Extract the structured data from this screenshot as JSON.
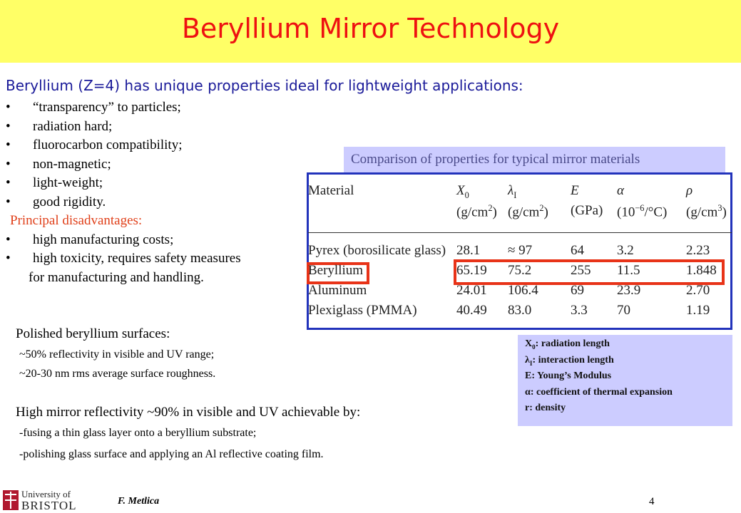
{
  "title": "Beryllium Mirror Technology",
  "intro": {
    "heading": "Beryllium (Z=4) has unique properties ideal for lightweight applications:",
    "bullets": [
      "“transparency” to particles;",
      "radiation hard;",
      "fluorocarbon compatibility;",
      "non-magnetic;",
      "light-weight;",
      "good rigidity."
    ],
    "disadvantages_heading": "Principal disadvantages:",
    "disadvantages": [
      "high manufacturing costs;",
      "high toxicity, requires safety  measures"
    ],
    "disadvantages_continuation": "for manufacturing and handling."
  },
  "polished": {
    "heading": "Polished beryllium surfaces:",
    "lines": [
      "~50% reflectivity in visible and UV range;",
      "~20-30 nm rms average surface roughness."
    ]
  },
  "reflectivity": {
    "heading": "High mirror reflectivity ~90% in visible and UV achievable by:",
    "lines": [
      "-fusing a thin glass layer onto a beryllium substrate;",
      "-polishing glass surface and applying an Al reflective coating film."
    ]
  },
  "table": {
    "caption": "Comparison of properties for typical mirror materials",
    "header": [
      {
        "text": "Material"
      },
      {
        "text": "X",
        "sub": "0"
      },
      {
        "text": "λ",
        "sub": "I"
      },
      {
        "text": "E"
      },
      {
        "text": "α"
      },
      {
        "text": "ρ"
      }
    ],
    "units": [
      {
        "text": "(g/cm",
        "sup": "2",
        "end": ")"
      },
      {
        "text": "(g/cm",
        "sup": "2",
        "end": ")"
      },
      {
        "text": "(GPa)"
      },
      {
        "text": "(10",
        "sup": "−6",
        "end": "/°C)"
      },
      {
        "text": "(g/cm",
        "sup": "3",
        "end": ")"
      }
    ],
    "rows": [
      [
        "Pyrex (borosilicate glass)",
        "28.1",
        "≈ 97",
        "64",
        "3.2",
        "2.23"
      ],
      [
        "Beryllium",
        "65.19",
        "75.2",
        "255",
        "11.5",
        "1.848"
      ],
      [
        "Aluminum",
        "24.01",
        "106.4",
        "69",
        "23.9",
        "2.70"
      ],
      [
        "Plexiglass (PMMA)",
        "40.49",
        "83.0",
        "3.3",
        "70",
        "1.19"
      ]
    ]
  },
  "legend": [
    {
      "symbol": "X",
      "sub": "0",
      "text": ":  radiation length"
    },
    {
      "symbol": "λ",
      "sub": "I",
      "text": ":   interaction length"
    },
    {
      "symbol": "E",
      "text": ":   Young’s Modulus"
    },
    {
      "symbol": "α",
      "text": ": coefficient of thermal expansion"
    },
    {
      "symbol": "r",
      "text": ": density"
    }
  ],
  "footer": {
    "logo_top": "University of",
    "logo_bottom": "BRISTOL",
    "author": "F. Metlica",
    "page": "4"
  }
}
